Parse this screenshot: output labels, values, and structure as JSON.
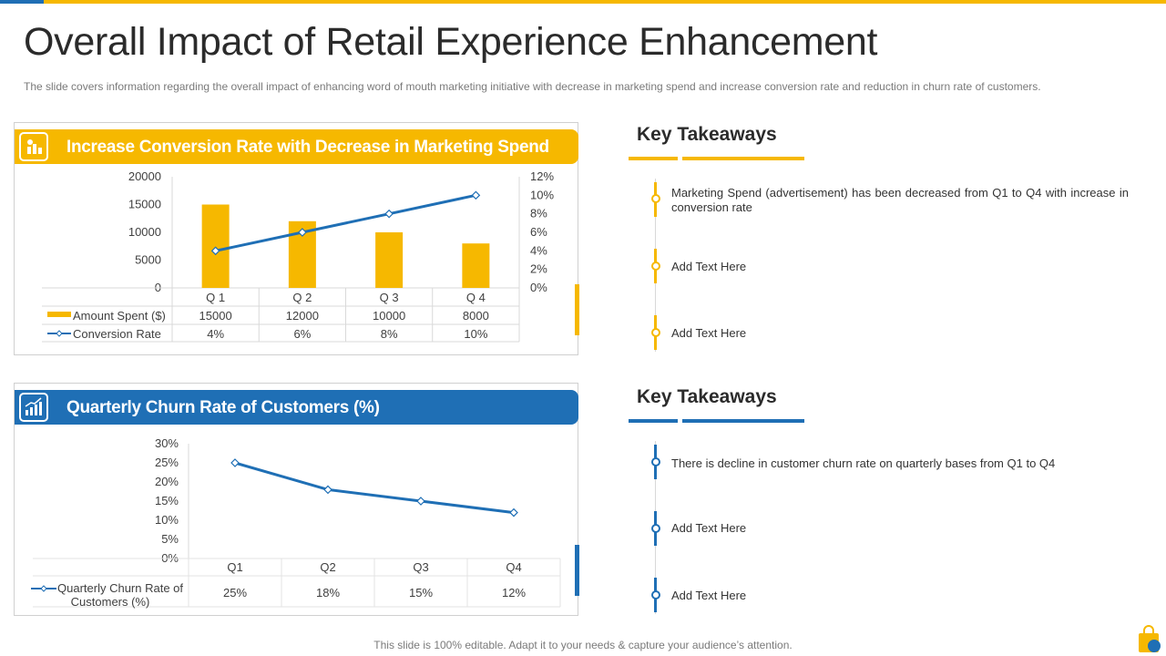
{
  "slide": {
    "title": "Overall Impact of Retail Experience Enhancement",
    "subtitle": "The slide covers information regarding the overall impact of enhancing word of mouth marketing initiative with decrease in marketing spend and increase conversion rate and reduction in churn rate of customers.",
    "footer": "This slide is 100% editable. Adapt it to your needs & capture your audience’s attention."
  },
  "colors": {
    "yellow": "#f6b800",
    "blue": "#1f6fb5"
  },
  "panel1": {
    "title": "Increase Conversion Rate with Decrease in Marketing Spend",
    "icon": "chart-icon"
  },
  "panel2": {
    "title": "Quarterly Churn Rate of Customers (%)",
    "icon": "bar-growth-icon"
  },
  "takeaways1": {
    "title": "Key Takeaways",
    "items": [
      "Marketing Spend (advertisement) has been decreased from Q1 to Q4 with increase in conversion rate",
      "Add Text Here",
      "Add Text Here"
    ]
  },
  "takeaways2": {
    "title": "Key Takeaways",
    "items": [
      "There is decline in customer churn rate on quarterly bases from Q1 to Q4",
      "Add Text Here",
      "Add Text Here"
    ]
  },
  "chart_data": [
    {
      "type": "bar",
      "title": "Increase Conversion Rate with Decrease in Marketing Spend",
      "categories": [
        "Q 1",
        "Q 2",
        "Q 3",
        "Q 4"
      ],
      "y_ticks": [
        "20000",
        "15000",
        "10000",
        "5000",
        "0"
      ],
      "y2_ticks": [
        "12%",
        "10%",
        "8%",
        "6%",
        "4%",
        "2%",
        "0%"
      ],
      "ylim": [
        0,
        20000
      ],
      "y2lim": [
        0,
        12
      ],
      "series": [
        {
          "name": "Amount Spent ($)",
          "kind": "bar",
          "axis": "left",
          "values": [
            15000,
            12000,
            10000,
            8000
          ],
          "labels": [
            "15000",
            "12000",
            "10000",
            "8000"
          ]
        },
        {
          "name": "Conversion Rate",
          "kind": "line",
          "axis": "right",
          "values": [
            4,
            6,
            8,
            10
          ],
          "labels": [
            "4%",
            "6%",
            "8%",
            "10%"
          ]
        }
      ]
    },
    {
      "type": "line",
      "title": "Quarterly Churn Rate of Customers (%)",
      "categories": [
        "Q1",
        "Q2",
        "Q3",
        "Q4"
      ],
      "y_ticks": [
        "30%",
        "25%",
        "20%",
        "15%",
        "10%",
        "5%",
        "0%"
      ],
      "ylim": [
        0,
        30
      ],
      "series": [
        {
          "name": "Quarterly Churn Rate of Customers (%)",
          "kind": "line",
          "values": [
            25,
            18,
            15,
            12
          ],
          "labels": [
            "25%",
            "18%",
            "15%",
            "12%"
          ]
        }
      ]
    }
  ]
}
